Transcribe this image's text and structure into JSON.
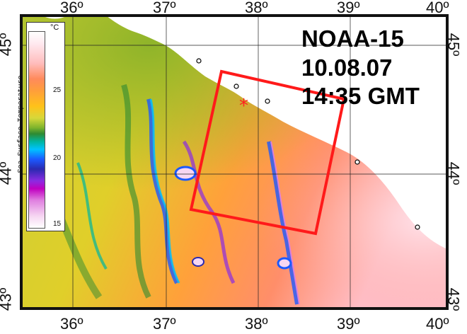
{
  "map": {
    "longitude_ticks": [
      "36º",
      "37º",
      "38º",
      "39º",
      "40º"
    ],
    "latitude_ticks": [
      "45º",
      "44º",
      "43º"
    ],
    "colors": {
      "warm": "#ff9e3b",
      "hot": "#ffb8c8",
      "mid": "#d7d83a",
      "cool": "#7cb32c",
      "cold": "#1b59ff",
      "land": "#ffffff",
      "box": "#ff1a1a",
      "marker": "#ff2020"
    }
  },
  "annotation": {
    "satellite": "NOAA-15",
    "date": "10.08.07",
    "time": "14:35 GMT"
  },
  "legend": {
    "unit": "°C",
    "title": "Sea Surface Temperature",
    "ticks": [
      "25",
      "20",
      "15"
    ]
  }
}
